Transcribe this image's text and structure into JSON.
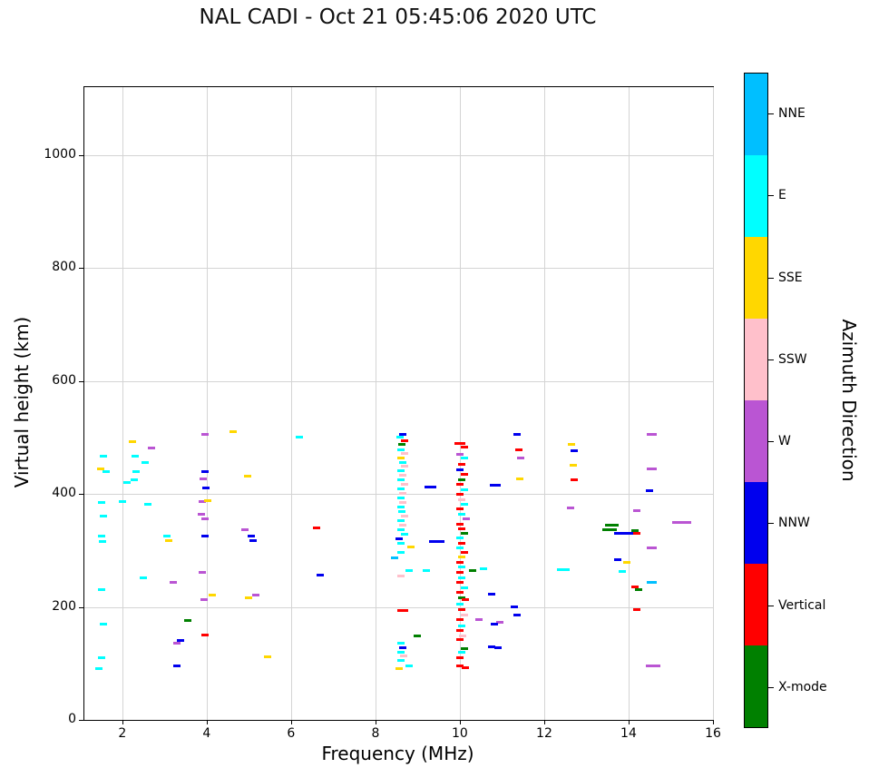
{
  "chart_data": {
    "type": "scatter",
    "title": "NAL CADI - Oct 21 05:45:06 2020 UTC",
    "xlabel": "Frequency (MHz)",
    "ylabel": "Virtual height (km)",
    "xlim": [
      1.1,
      16
    ],
    "ylim": [
      0,
      1120
    ],
    "xticks": [
      2,
      4,
      6,
      8,
      10,
      12,
      14,
      16
    ],
    "yticks": [
      0,
      200,
      400,
      600,
      800,
      1000
    ],
    "grid": true,
    "marker": "horizontal-dash",
    "colorbar": {
      "label": "Azimuth Direction",
      "bands_top_to_bottom": [
        {
          "label": "NNE",
          "color": "#00BFFF"
        },
        {
          "label": "E",
          "color": "#00FFFF"
        },
        {
          "label": "SSE",
          "color": "#FFD700"
        },
        {
          "label": "SSW",
          "color": "#FFC0CB"
        },
        {
          "label": "W",
          "color": "#BA55D3"
        },
        {
          "label": "NNW",
          "color": "#0000EE"
        },
        {
          "label": "Vertical",
          "color": "#FF0000"
        },
        {
          "label": "X-mode",
          "color": "#008000"
        }
      ]
    },
    "points": [
      [
        1.48,
        445,
        "SSE"
      ],
      [
        1.55,
        467,
        "E"
      ],
      [
        1.62,
        440,
        "E"
      ],
      [
        1.5,
        385,
        "E"
      ],
      [
        1.56,
        360,
        "E"
      ],
      [
        1.5,
        326,
        "E"
      ],
      [
        1.53,
        315,
        "E"
      ],
      [
        1.5,
        231,
        "E"
      ],
      [
        1.55,
        170,
        "E"
      ],
      [
        1.5,
        110,
        "E"
      ],
      [
        1.45,
        90,
        "E"
      ],
      [
        2.0,
        386,
        "E"
      ],
      [
        2.1,
        421,
        "E"
      ],
      [
        2.25,
        492,
        "SSE"
      ],
      [
        2.3,
        466,
        "E"
      ],
      [
        2.33,
        440,
        "E"
      ],
      [
        2.28,
        425,
        "E"
      ],
      [
        2.55,
        456,
        "E"
      ],
      [
        2.6,
        381,
        "E"
      ],
      [
        2.7,
        481,
        "W"
      ],
      [
        2.5,
        251,
        "E"
      ],
      [
        3.05,
        325,
        "E"
      ],
      [
        3.1,
        318,
        "SSE"
      ],
      [
        3.2,
        243,
        "W"
      ],
      [
        3.3,
        136,
        "W"
      ],
      [
        3.38,
        141,
        "NNW"
      ],
      [
        3.55,
        176,
        "X-mode"
      ],
      [
        3.3,
        95,
        "NNW"
      ],
      [
        3.95,
        505,
        "W"
      ],
      [
        3.95,
        440,
        "NNW"
      ],
      [
        3.92,
        426,
        "W"
      ],
      [
        3.98,
        411,
        "NNW"
      ],
      [
        3.9,
        386,
        "W"
      ],
      [
        4.03,
        388,
        "SSE"
      ],
      [
        3.88,
        364,
        "W"
      ],
      [
        3.96,
        356,
        "W"
      ],
      [
        3.95,
        326,
        "NNW"
      ],
      [
        3.9,
        261,
        "W"
      ],
      [
        3.93,
        213,
        "W"
      ],
      [
        4.13,
        221,
        "SSE"
      ],
      [
        3.97,
        150,
        "Vertical"
      ],
      [
        4.62,
        510,
        "SSE"
      ],
      [
        4.98,
        432,
        "SSE"
      ],
      [
        4.9,
        336,
        "W"
      ],
      [
        5.05,
        326,
        "NNW"
      ],
      [
        5.1,
        317,
        "NNW"
      ],
      [
        5.0,
        216,
        "SSE"
      ],
      [
        5.16,
        221,
        "W"
      ],
      [
        5.45,
        112,
        "SSE"
      ],
      [
        6.2,
        500,
        "E"
      ],
      [
        6.6,
        340,
        "Vertical"
      ],
      [
        6.7,
        256,
        "NNW"
      ],
      [
        8.65,
        505,
        "NNW"
      ],
      [
        8.58,
        500,
        "E"
      ],
      [
        8.68,
        494,
        "Vertical"
      ],
      [
        8.62,
        488,
        "X-mode"
      ],
      [
        8.6,
        478,
        "E"
      ],
      [
        8.68,
        471,
        "SSW"
      ],
      [
        8.6,
        464,
        "SSE"
      ],
      [
        8.65,
        456,
        "E"
      ],
      [
        8.7,
        449,
        "SSW"
      ],
      [
        8.6,
        441,
        "E"
      ],
      [
        8.65,
        433,
        "SSW"
      ],
      [
        8.6,
        425,
        "E"
      ],
      [
        8.68,
        417,
        "SSW"
      ],
      [
        8.6,
        409,
        "E"
      ],
      [
        8.65,
        401,
        "SSW"
      ],
      [
        8.6,
        393,
        "E"
      ],
      [
        8.65,
        385,
        "SSW"
      ],
      [
        8.6,
        377,
        "E"
      ],
      [
        8.62,
        369,
        "E"
      ],
      [
        8.68,
        361,
        "SSW"
      ],
      [
        8.6,
        353,
        "E"
      ],
      [
        8.65,
        345,
        "SSW"
      ],
      [
        8.6,
        337,
        "E"
      ],
      [
        8.7,
        329,
        "E"
      ],
      [
        8.55,
        321,
        "NNW"
      ],
      [
        8.6,
        313,
        "E"
      ],
      [
        8.85,
        306,
        "SSE"
      ],
      [
        8.6,
        297,
        "E"
      ],
      [
        8.45,
        287,
        "NNE"
      ],
      [
        8.8,
        265,
        "E"
      ],
      [
        8.6,
        255,
        "SSW"
      ],
      [
        8.65,
        193,
        "Vertical",
        1.5
      ],
      [
        8.6,
        135,
        "E"
      ],
      [
        8.65,
        128,
        "NNW"
      ],
      [
        8.6,
        120,
        "E"
      ],
      [
        8.66,
        113,
        "SSW"
      ],
      [
        8.6,
        105,
        "E"
      ],
      [
        8.55,
        90,
        "SSE"
      ],
      [
        8.8,
        95,
        "E"
      ],
      [
        9.0,
        148,
        "X-mode"
      ],
      [
        9.3,
        412,
        "NNW",
        1.6
      ],
      [
        9.45,
        315,
        "NNW",
        2.2
      ],
      [
        9.2,
        265,
        "E"
      ],
      [
        10.0,
        490,
        "Vertical",
        1.4
      ],
      [
        10.1,
        483,
        "Vertical"
      ],
      [
        10.0,
        470,
        "W"
      ],
      [
        10.1,
        463,
        "E"
      ],
      [
        10.05,
        452,
        "Vertical"
      ],
      [
        10.0,
        443,
        "NNW"
      ],
      [
        10.1,
        434,
        "Vertical"
      ],
      [
        10.05,
        425,
        "X-mode"
      ],
      [
        10.0,
        417,
        "Vertical"
      ],
      [
        10.1,
        408,
        "E"
      ],
      [
        10.0,
        399,
        "Vertical"
      ],
      [
        10.05,
        390,
        "SSW"
      ],
      [
        10.1,
        382,
        "E"
      ],
      [
        10.0,
        373,
        "Vertical"
      ],
      [
        10.05,
        364,
        "E"
      ],
      [
        10.15,
        356,
        "W"
      ],
      [
        10.0,
        347,
        "Vertical"
      ],
      [
        10.05,
        338,
        "Vertical"
      ],
      [
        10.1,
        330,
        "X-mode"
      ],
      [
        10.0,
        322,
        "E"
      ],
      [
        10.05,
        313,
        "Vertical"
      ],
      [
        10.0,
        305,
        "E"
      ],
      [
        10.1,
        296,
        "Vertical"
      ],
      [
        10.05,
        288,
        "SSE"
      ],
      [
        10.0,
        279,
        "Vertical"
      ],
      [
        10.05,
        270,
        "E"
      ],
      [
        10.3,
        265,
        "X-mode"
      ],
      [
        10.0,
        261,
        "Vertical"
      ],
      [
        10.05,
        252,
        "E"
      ],
      [
        10.0,
        243,
        "Vertical"
      ],
      [
        10.1,
        234,
        "E"
      ],
      [
        10.0,
        225,
        "Vertical"
      ],
      [
        10.05,
        216,
        "X-mode"
      ],
      [
        10.12,
        213,
        "Vertical"
      ],
      [
        10.0,
        205,
        "E"
      ],
      [
        10.05,
        196,
        "Vertical"
      ],
      [
        10.1,
        186,
        "SSW"
      ],
      [
        10.0,
        177,
        "Vertical"
      ],
      [
        10.45,
        178,
        "W"
      ],
      [
        10.05,
        167,
        "E"
      ],
      [
        10.0,
        158,
        "Vertical"
      ],
      [
        10.06,
        148,
        "SSW"
      ],
      [
        10.0,
        143,
        "Vertical"
      ],
      [
        10.1,
        126,
        "X-mode"
      ],
      [
        10.05,
        120,
        "E"
      ],
      [
        10.0,
        110,
        "Vertical"
      ],
      [
        10.0,
        95,
        "Vertical"
      ],
      [
        10.12,
        92,
        "Vertical"
      ],
      [
        10.85,
        415,
        "NNW",
        1.5
      ],
      [
        10.75,
        222,
        "NNW"
      ],
      [
        10.95,
        172,
        "W"
      ],
      [
        10.82,
        169,
        "NNW"
      ],
      [
        10.75,
        130,
        "NNW"
      ],
      [
        10.9,
        128,
        "NNW"
      ],
      [
        10.55,
        267,
        "E"
      ],
      [
        11.35,
        505,
        "NNW"
      ],
      [
        11.4,
        478,
        "Vertical"
      ],
      [
        11.45,
        464,
        "W"
      ],
      [
        11.42,
        427,
        "SSE"
      ],
      [
        11.3,
        200,
        "NNW"
      ],
      [
        11.36,
        185,
        "NNW"
      ],
      [
        12.65,
        487,
        "SSE"
      ],
      [
        12.7,
        476,
        "NNW"
      ],
      [
        12.68,
        450,
        "SSE"
      ],
      [
        12.7,
        425,
        "Vertical"
      ],
      [
        12.62,
        375,
        "W"
      ],
      [
        12.45,
        266,
        "E",
        1.8
      ],
      [
        13.6,
        345,
        "X-mode",
        1.8
      ],
      [
        13.55,
        337,
        "X-mode",
        2.0
      ],
      [
        13.9,
        331,
        "NNW",
        2.8
      ],
      [
        13.75,
        284,
        "NNW"
      ],
      [
        13.85,
        262,
        "E"
      ],
      [
        14.2,
        370,
        "W"
      ],
      [
        14.15,
        335,
        "X-mode"
      ],
      [
        14.2,
        330,
        "Vertical"
      ],
      [
        14.15,
        236,
        "Vertical"
      ],
      [
        14.23,
        230,
        "X-mode"
      ],
      [
        14.2,
        196,
        "Vertical"
      ],
      [
        13.95,
        279,
        "SSE"
      ],
      [
        14.55,
        505,
        "W",
        1.4
      ],
      [
        14.55,
        445,
        "W",
        1.4
      ],
      [
        14.5,
        405,
        "NNW"
      ],
      [
        14.55,
        305,
        "W",
        1.4
      ],
      [
        14.55,
        244,
        "NNE",
        1.4
      ],
      [
        14.5,
        95,
        "W"
      ],
      [
        14.66,
        95,
        "W"
      ],
      [
        15.25,
        350,
        "W",
        2.6
      ]
    ]
  }
}
